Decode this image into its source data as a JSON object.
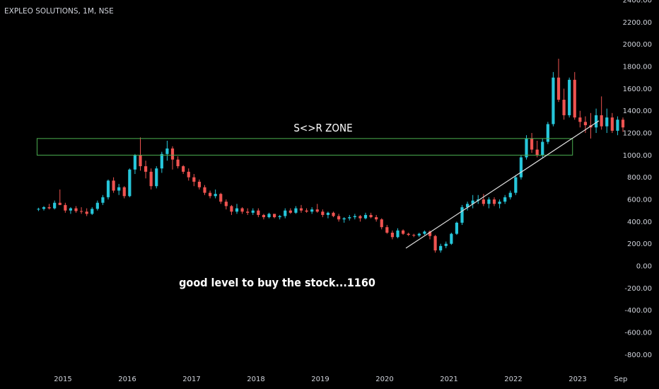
{
  "symbol_label": "EXPLEO SOLUTIONS, 1M, NSE",
  "colors": {
    "background": "#000000",
    "up": "#26c6da",
    "down": "#ef5350",
    "zone": "#4caf50",
    "trendline": "#e0e0e0",
    "axis_text": "#d1d4dc"
  },
  "chart_data": {
    "type": "candlestick",
    "title": "EXPLEO SOLUTIONS, 1M, NSE",
    "y_ticks": [
      "2400.00",
      "2200.00",
      "2000.00",
      "1800.00",
      "1600.00",
      "1400.00",
      "1200.00",
      "1000.00",
      "800.00",
      "600.00",
      "400.00",
      "200.00",
      "0.00",
      "-200.00",
      "-400.00",
      "-600.00",
      "-800.00"
    ],
    "y_tick_values": [
      2400,
      2200,
      2000,
      1800,
      1600,
      1400,
      1200,
      1000,
      800,
      600,
      400,
      200,
      0,
      -200,
      -400,
      -600,
      -800
    ],
    "x_ticks": [
      {
        "label": "2015",
        "t": 2015.0
      },
      {
        "label": "2016",
        "t": 2016.0
      },
      {
        "label": "2017",
        "t": 2017.0
      },
      {
        "label": "2018",
        "t": 2018.0
      },
      {
        "label": "2019",
        "t": 2019.0
      },
      {
        "label": "2020",
        "t": 2020.0
      },
      {
        "label": "2021",
        "t": 2021.0
      },
      {
        "label": "2022",
        "t": 2022.0
      },
      {
        "label": "2023",
        "t": 2023.0
      },
      {
        "label": "Sep",
        "t": 2023.67
      }
    ],
    "ylim": [
      -900,
      2400
    ],
    "x_start": 2014.62,
    "annotations": {
      "zone": {
        "label": "S<>R ZONE",
        "low": 1000,
        "high": 1150,
        "start": 2014.62,
        "end": 2022.92
      },
      "trendline": {
        "start": {
          "t": 2020.33,
          "price": 160
        },
        "end": {
          "t": 2023.33,
          "price": 1310
        }
      },
      "note": "good level to buy the stock...1160"
    },
    "candles": [
      [
        510,
        525,
        495,
        515
      ],
      [
        515,
        540,
        500,
        530
      ],
      [
        530,
        560,
        510,
        520
      ],
      [
        520,
        590,
        510,
        570
      ],
      [
        570,
        690,
        550,
        550
      ],
      [
        550,
        570,
        480,
        500
      ],
      [
        500,
        530,
        470,
        520
      ],
      [
        520,
        540,
        480,
        495
      ],
      [
        495,
        530,
        470,
        490
      ],
      [
        490,
        520,
        450,
        470
      ],
      [
        470,
        530,
        460,
        515
      ],
      [
        515,
        590,
        500,
        570
      ],
      [
        570,
        640,
        550,
        620
      ],
      [
        620,
        780,
        600,
        770
      ],
      [
        770,
        800,
        660,
        680
      ],
      [
        680,
        740,
        640,
        710
      ],
      [
        710,
        720,
        610,
        630
      ],
      [
        630,
        880,
        620,
        870
      ],
      [
        870,
        1010,
        830,
        1000
      ],
      [
        1000,
        1160,
        860,
        900
      ],
      [
        900,
        950,
        790,
        850
      ],
      [
        850,
        880,
        690,
        720
      ],
      [
        720,
        900,
        700,
        880
      ],
      [
        880,
        1030,
        840,
        1010
      ],
      [
        1010,
        1130,
        950,
        1060
      ],
      [
        1060,
        1080,
        870,
        960
      ],
      [
        960,
        990,
        880,
        900
      ],
      [
        900,
        910,
        830,
        850
      ],
      [
        850,
        880,
        770,
        800
      ],
      [
        800,
        830,
        720,
        760
      ],
      [
        760,
        780,
        690,
        710
      ],
      [
        710,
        730,
        640,
        660
      ],
      [
        660,
        680,
        610,
        630
      ],
      [
        630,
        690,
        610,
        650
      ],
      [
        650,
        660,
        560,
        580
      ],
      [
        580,
        600,
        510,
        540
      ],
      [
        540,
        550,
        460,
        490
      ],
      [
        490,
        560,
        470,
        520
      ],
      [
        520,
        530,
        470,
        490
      ],
      [
        490,
        520,
        460,
        480
      ],
      [
        480,
        520,
        460,
        500
      ],
      [
        500,
        520,
        440,
        460
      ],
      [
        460,
        470,
        420,
        440
      ],
      [
        440,
        480,
        430,
        470
      ],
      [
        470,
        470,
        430,
        440
      ],
      [
        440,
        460,
        420,
        450
      ],
      [
        450,
        520,
        430,
        500
      ],
      [
        500,
        520,
        470,
        480
      ],
      [
        480,
        540,
        470,
        520
      ],
      [
        520,
        550,
        480,
        500
      ],
      [
        500,
        520,
        480,
        490
      ],
      [
        490,
        530,
        470,
        510
      ],
      [
        510,
        560,
        480,
        490
      ],
      [
        490,
        510,
        440,
        460
      ],
      [
        460,
        490,
        430,
        480
      ],
      [
        480,
        490,
        440,
        450
      ],
      [
        450,
        470,
        400,
        420
      ],
      [
        420,
        440,
        390,
        430
      ],
      [
        430,
        460,
        410,
        440
      ],
      [
        440,
        470,
        420,
        450
      ],
      [
        450,
        460,
        400,
        430
      ],
      [
        430,
        480,
        420,
        460
      ],
      [
        460,
        480,
        430,
        440
      ],
      [
        440,
        460,
        400,
        420
      ],
      [
        420,
        430,
        330,
        350
      ],
      [
        350,
        370,
        290,
        300
      ],
      [
        300,
        320,
        240,
        260
      ],
      [
        260,
        340,
        250,
        320
      ],
      [
        320,
        330,
        280,
        290
      ],
      [
        290,
        300,
        270,
        280
      ],
      [
        280,
        290,
        260,
        275
      ],
      [
        275,
        300,
        260,
        290
      ],
      [
        290,
        320,
        280,
        310
      ],
      [
        310,
        320,
        240,
        270
      ],
      [
        270,
        280,
        120,
        140
      ],
      [
        140,
        200,
        120,
        180
      ],
      [
        180,
        220,
        160,
        200
      ],
      [
        200,
        300,
        190,
        290
      ],
      [
        290,
        400,
        280,
        390
      ],
      [
        390,
        550,
        370,
        530
      ],
      [
        530,
        580,
        500,
        560
      ],
      [
        560,
        640,
        520,
        590
      ],
      [
        590,
        640,
        560,
        600
      ],
      [
        600,
        650,
        540,
        560
      ],
      [
        560,
        620,
        520,
        600
      ],
      [
        600,
        620,
        540,
        560
      ],
      [
        560,
        600,
        520,
        580
      ],
      [
        580,
        640,
        560,
        620
      ],
      [
        620,
        680,
        600,
        660
      ],
      [
        660,
        820,
        640,
        800
      ],
      [
        800,
        1000,
        780,
        980
      ],
      [
        980,
        1180,
        960,
        1150
      ],
      [
        1150,
        1200,
        1020,
        1050
      ],
      [
        1050,
        1130,
        980,
        1000
      ],
      [
        1000,
        1150,
        980,
        1120
      ],
      [
        1120,
        1300,
        1100,
        1280
      ],
      [
        1280,
        1750,
        1260,
        1700
      ],
      [
        1700,
        1870,
        1480,
        1500
      ],
      [
        1500,
        1600,
        1320,
        1360
      ],
      [
        1360,
        1700,
        1340,
        1680
      ],
      [
        1680,
        1750,
        1320,
        1340
      ],
      [
        1340,
        1400,
        1250,
        1300
      ],
      [
        1300,
        1350,
        1200,
        1270
      ],
      [
        1270,
        1380,
        1150,
        1250
      ],
      [
        1250,
        1420,
        1200,
        1360
      ],
      [
        1360,
        1530,
        1230,
        1260
      ],
      [
        1260,
        1420,
        1200,
        1340
      ],
      [
        1340,
        1380,
        1200,
        1220
      ],
      [
        1220,
        1350,
        1180,
        1320
      ],
      [
        1320,
        1340,
        1210,
        1250
      ]
    ]
  }
}
